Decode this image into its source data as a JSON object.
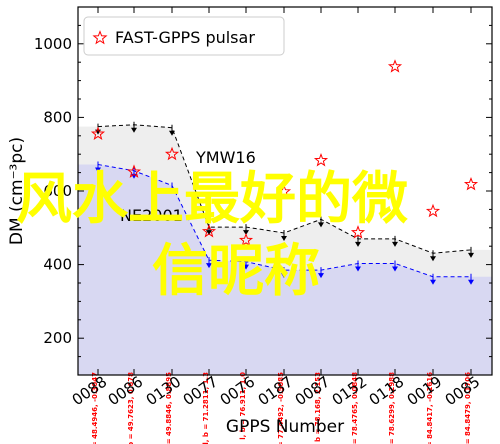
{
  "chart_data": {
    "type": "scatter",
    "xlabel": "GPPS Number",
    "ylabel": "DM (cm⁻³pc)",
    "ylim": [
      100,
      1100
    ],
    "yticks": [
      200,
      400,
      600,
      800,
      1000
    ],
    "categories": [
      "0088",
      "0086",
      "0130",
      "0077",
      "0076",
      "0187",
      "0087",
      "0152",
      "0118",
      "0019",
      "0085"
    ],
    "legend": {
      "position": "top-left",
      "entries": [
        "FAST-GPPS pulsar"
      ]
    },
    "grid": false,
    "series": [
      {
        "name": "FAST-GPPS pulsar",
        "marker": "star-outline",
        "color": "#ff0000",
        "values": [
          755,
          652,
          700,
          490,
          466,
          598,
          683,
          487,
          938,
          545,
          618
        ]
      }
    ],
    "ymw16_line": [
      672,
      655,
      615,
      412,
      408,
      385,
      385,
      403,
      403,
      367,
      367
    ],
    "ne2001_line": [
      775,
      780,
      772,
      502,
      502,
      486,
      523,
      470,
      470,
      431,
      440
    ],
    "lb_labels": [
      "l, b = 48.4946, -0.3047",
      "l, b = 49.7623, 0.678",
      "l, b = 49.8846, 0.8895",
      "l, b = 71.2811, 1.3",
      "l, b = 76.911, 1.0",
      "l, b = 77.4492, -0.5085",
      "l, b = 78.168, 2.153",
      "l, b = 78.4765, 0.0848",
      "l, b = 78.6299, 0.2988",
      "l, b = 84.8417, -0.1616",
      "l, b = 84.8479, 0.1706"
    ],
    "annotations": {
      "ymw16": "YMW16",
      "ne2001": "NE2001"
    }
  },
  "overlay_text": {
    "line1": "风水上最好的微",
    "line2": "信昵称"
  },
  "colors": {
    "ymw_fill": "#d8d8f2",
    "ne_fill": "#eeeeee",
    "ymw_line": "#0000ff",
    "ne_line": "#000000",
    "star": "#ff0000",
    "overlay": "#ffff00",
    "label": "#ff0000"
  }
}
